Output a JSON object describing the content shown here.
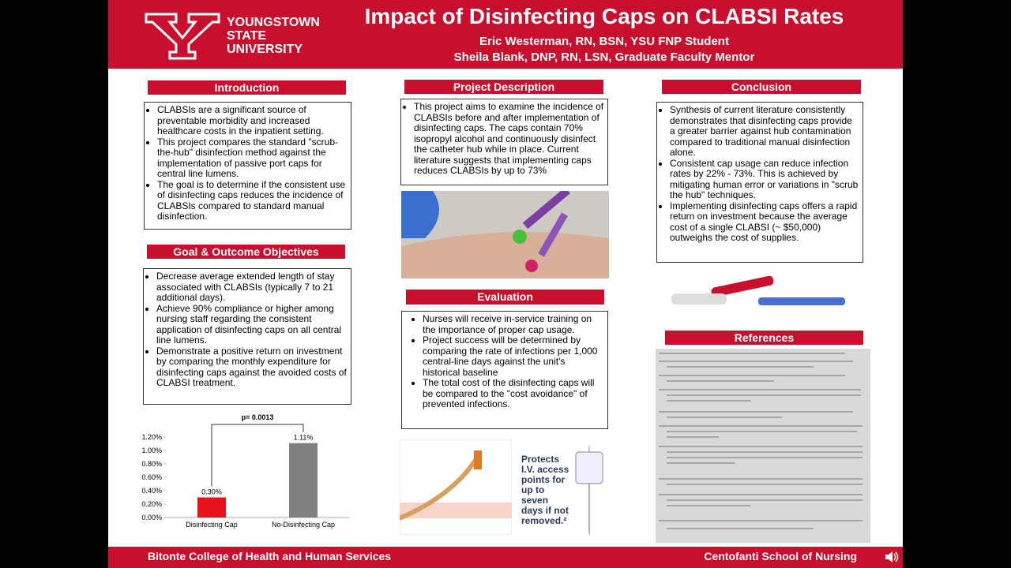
{
  "header": {
    "university": [
      "YOUNGSTOWN",
      "STATE",
      "UNIVERSITY"
    ],
    "title": "Impact of Disinfecting Caps on CLABSI Rates",
    "authors": [
      "Eric Westerman, RN, BSN, YSU FNP Student",
      "Sheila Blank, DNP, RN, LSN, Graduate Faculty Mentor"
    ]
  },
  "introduction": {
    "heading": "Introduction",
    "bullets": [
      "CLABSIs are a significant source of preventable morbidity and increased healthcare costs in the inpatient setting.",
      "This project compares the standard \"scrub-the-hub\" disinfection method against the implementation of passive port caps for central line lumens.",
      "The goal is to determine if the consistent use of disinfecting caps reduces the incidence of CLABSIs compared to standard manual disinfection."
    ]
  },
  "goals": {
    "heading": "Goal & Outcome Objectives",
    "bullets": [
      "Decrease average extended length of stay associated with CLABSIs (typically 7 to 21 additional days).",
      "Achieve 90% compliance or higher among nursing staff regarding the consistent application of disinfecting caps on all central line lumens.",
      "Demonstrate a positive return on investment by comparing the monthly expenditure for disinfecting caps against the avoided costs of CLABSI treatment."
    ]
  },
  "chart_data": {
    "type": "bar",
    "categories": [
      "Disinfecting Cap",
      "No-Disinfecting Cap"
    ],
    "values": [
      0.3,
      1.11
    ],
    "value_labels": [
      "0.30%",
      "1.11%"
    ],
    "colors": [
      "#e8131b",
      "#808080"
    ],
    "annotation": "p= 0.0013",
    "ylim": [
      0,
      1.2
    ],
    "yticks": [
      {
        "value": 0,
        "label": "0.00%"
      },
      {
        "value": 0.2,
        "label": "0.20%"
      },
      {
        "value": 0.4,
        "label": "0.40%"
      },
      {
        "value": 0.6,
        "label": "0.60%"
      },
      {
        "value": 0.8,
        "label": "0.80%"
      },
      {
        "value": 1.0,
        "label": "1.00%"
      },
      {
        "value": 1.2,
        "label": "1.20%"
      }
    ]
  },
  "project_description": {
    "heading": "Project Description",
    "bullets": [
      "This project aims to examine the incidence of CLABSIs before and after implementation of disinfecting caps. The caps contain 70% isopropyl alcohol and continuously disinfect the catheter hub while in place. Current literature suggests that implementing caps reduces CLABSIs by up to 73%"
    ]
  },
  "evaluation": {
    "heading": "Evaluation",
    "bullets": [
      "Nurses will receive in-service training on the importance of proper cap usage.",
      "Project success will be determined by comparing the rate of infections per 1,000 central-line days against the unit's historical baseline",
      "The total cost of the disinfecting caps will be compared to the \"cost avoidance\" of prevented infections."
    ]
  },
  "ad_text": "Protects I.V. access points for up to seven days if not removed.²",
  "conclusion": {
    "heading": "Conclusion",
    "bullets": [
      "Synthesis of current literature consistently demonstrates that disinfecting caps provide a greater barrier against hub contamination compared to traditional manual disinfection alone.",
      "Consistent cap usage can reduce infection rates by 22% - 73%. This is achieved by mitigating human error or variations in \"scrub the hub\" techniques.",
      "Implementing disinfecting caps offers a rapid return on investment because the average cost of a single CLABSI (~ $50,000) outweighs the cost of supplies."
    ]
  },
  "references": {
    "heading": "References"
  },
  "footer": {
    "left": "Bitonte College of Health and Human Services",
    "right": "Centofanti School of Nursing"
  }
}
